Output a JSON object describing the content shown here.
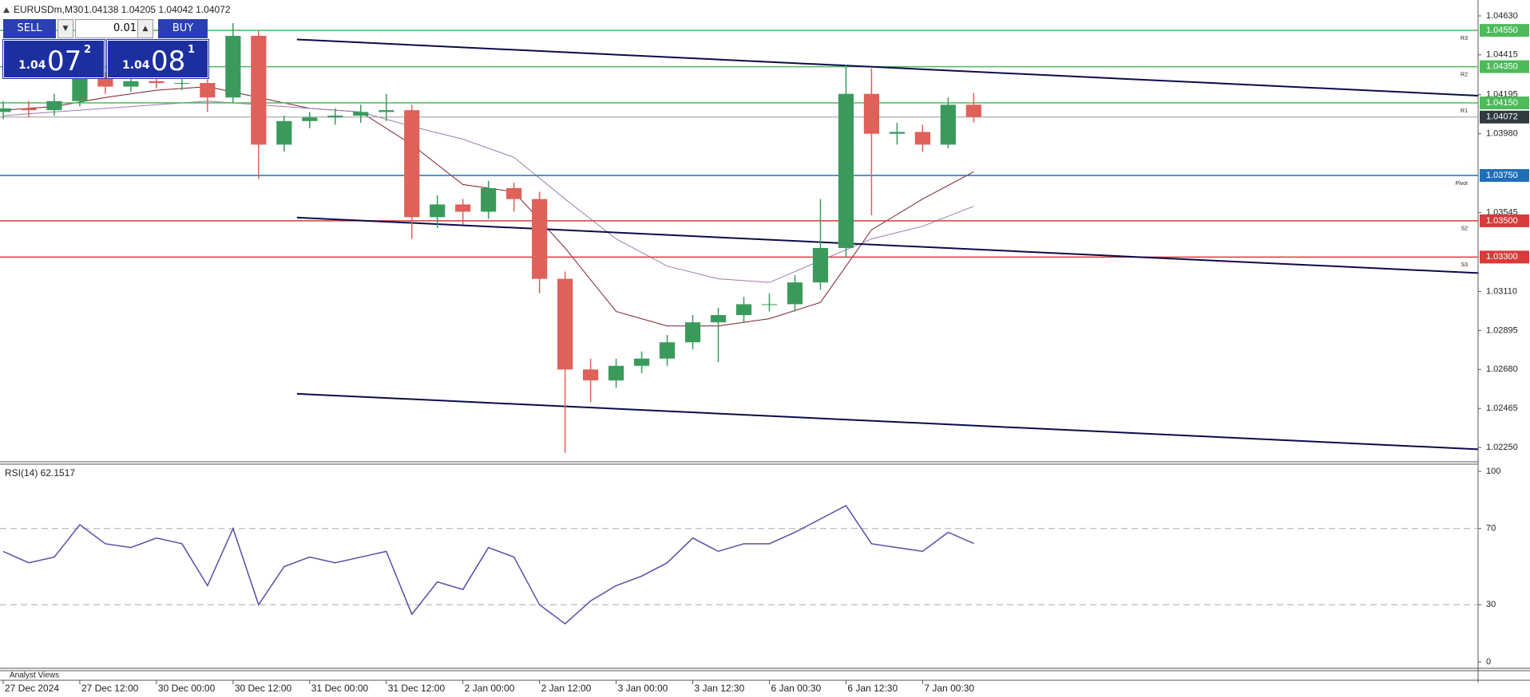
{
  "header": {
    "symbol": "EURUSDm,M30",
    "ohlc": "1.04138 1.04205 1.04042 1.04072"
  },
  "trade_panel": {
    "sell": "SELL",
    "buy": "BUY",
    "lot": "0.01",
    "sell_price": {
      "big": "1.04",
      "pips": "07",
      "point": "2"
    },
    "buy_price": {
      "big": "1.04",
      "pips": "08",
      "point": "1"
    }
  },
  "footer": {
    "tab": "Analyst Views"
  },
  "chart_data": [
    {
      "type": "candlestick",
      "x": [
        0,
        8,
        16,
        24,
        32,
        40,
        48,
        56,
        64,
        72,
        80,
        88,
        96,
        104,
        112,
        120,
        128,
        136,
        144,
        152,
        160,
        168,
        176,
        184,
        192,
        200,
        208,
        216,
        224,
        232,
        240,
        248,
        256,
        264,
        272,
        280,
        288,
        296,
        304
      ],
      "open": [
        1.041,
        1.0412,
        1.0411,
        1.0416,
        1.0429,
        1.0424,
        1.0427,
        1.0426,
        1.0426,
        1.0418,
        1.0452,
        1.0392,
        1.0405,
        1.0407,
        1.0408,
        1.041,
        1.0411,
        1.0352,
        1.0359,
        1.0355,
        1.0368,
        1.0362,
        1.0318,
        1.0268,
        1.0262,
        1.027,
        1.0274,
        1.0283,
        1.0294,
        1.0298,
        1.0304,
        1.0304,
        1.0316,
        1.0335,
        1.042,
        1.0398,
        1.0399,
        1.0392,
        1.0414
      ],
      "high": [
        1.0416,
        1.0416,
        1.042,
        1.0433,
        1.0432,
        1.0431,
        1.043,
        1.0429,
        1.0428,
        1.0459,
        1.0455,
        1.0408,
        1.041,
        1.0412,
        1.0414,
        1.042,
        1.0414,
        1.0364,
        1.0362,
        1.0372,
        1.0371,
        1.0366,
        1.0322,
        1.0274,
        1.0274,
        1.0278,
        1.0287,
        1.0298,
        1.0302,
        1.0308,
        1.031,
        1.032,
        1.0362,
        1.0436,
        1.0434,
        1.0404,
        1.0403,
        1.0418,
        1.04205
      ],
      "low": [
        1.0406,
        1.0407,
        1.0408,
        1.0413,
        1.042,
        1.0421,
        1.0423,
        1.0422,
        1.041,
        1.0415,
        1.0373,
        1.0388,
        1.0401,
        1.0403,
        1.0404,
        1.0405,
        1.034,
        1.0346,
        1.0348,
        1.0351,
        1.0355,
        1.031,
        1.0222,
        1.025,
        1.0258,
        1.0266,
        1.027,
        1.0279,
        1.0272,
        1.0294,
        1.03,
        1.03,
        1.0312,
        1.033,
        1.0353,
        1.0392,
        1.0388,
        1.039,
        1.04042
      ],
      "close": [
        1.0412,
        1.0411,
        1.0416,
        1.0429,
        1.0424,
        1.0427,
        1.0426,
        1.0426,
        1.0418,
        1.0452,
        1.0392,
        1.0405,
        1.0407,
        1.0408,
        1.041,
        1.0411,
        1.0352,
        1.0359,
        1.0355,
        1.0368,
        1.0362,
        1.0318,
        1.0268,
        1.0262,
        1.027,
        1.0274,
        1.0283,
        1.0294,
        1.0298,
        1.0304,
        1.0304,
        1.0316,
        1.0335,
        1.042,
        1.0398,
        1.0399,
        1.0392,
        1.0414,
        1.04072
      ],
      "up_color": "#3a9a5c",
      "down_color": "#e0605a",
      "xlim": [
        -1,
        462
      ],
      "xticks": [
        {
          "value": 0,
          "label": "27 Dec 2024"
        },
        {
          "value": 24,
          "label": "27 Dec 12:00"
        },
        {
          "value": 48,
          "label": "30 Dec 00:00"
        },
        {
          "value": 72,
          "label": "30 Dec 12:00"
        },
        {
          "value": 96,
          "label": "31 Dec 00:00"
        },
        {
          "value": 120,
          "label": "31 Dec 12:00"
        },
        {
          "value": 144,
          "label": "2 Jan 00:00"
        },
        {
          "value": 168,
          "label": "2 Jan 12:00"
        },
        {
          "value": 192,
          "label": "3 Jan 00:00"
        },
        {
          "value": 216,
          "label": "3 Jan 12:30"
        },
        {
          "value": 240,
          "label": "6 Jan 00:30"
        },
        {
          "value": 264,
          "label": "6 Jan 12:30"
        },
        {
          "value": 288,
          "label": "7 Jan 00:30"
        }
      ],
      "ylim": [
        1.0218,
        1.047
      ],
      "yticks": [
        {
          "value": 1.0463,
          "label": "1.04630"
        },
        {
          "value": 1.04415,
          "label": "1.04415"
        },
        {
          "value": 1.04195,
          "label": "1.04195"
        },
        {
          "value": 1.0398,
          "label": "1.03980"
        },
        {
          "value": 1.03545,
          "label": "1.03545"
        },
        {
          "value": 1.0311,
          "label": "1.03110"
        },
        {
          "value": 1.02895,
          "label": "1.02895"
        },
        {
          "value": 1.0268,
          "label": "1.02680"
        },
        {
          "value": 1.02465,
          "label": "1.02465"
        },
        {
          "value": 1.0225,
          "label": "1.02250"
        }
      ],
      "levels": [
        {
          "name": "R3",
          "value": 1.0455,
          "label": "1.04550",
          "color": "#4cbb5a"
        },
        {
          "name": "R2",
          "value": 1.0435,
          "label": "1.04350",
          "color": "#4cbb5a"
        },
        {
          "name": "R1",
          "value": 1.0415,
          "label": "1.04150",
          "color": "#4cbb5a"
        },
        {
          "name": "Pivot",
          "value": 1.0375,
          "label": "1.03750",
          "color": "#1f6fb8"
        },
        {
          "name": "S2",
          "value": 1.035,
          "label": "1.03500",
          "color": "#d93a3a"
        },
        {
          "name": "S3",
          "value": 1.033,
          "label": "1.03300",
          "color": "#d93a3a"
        }
      ],
      "current_price": {
        "value": 1.04072,
        "label": "1.04072",
        "color": "#2e3b40"
      },
      "trend_line_color": "#0b0b4a",
      "trend_lines": [
        {
          "x": [
            92,
            462
          ],
          "y": [
            1.045,
            1.0419
          ]
        },
        {
          "x": [
            92,
            462
          ],
          "y": [
            1.03518,
            1.03212
          ]
        },
        {
          "x": [
            92,
            462
          ],
          "y": [
            1.02546,
            1.0224
          ]
        }
      ],
      "moving_averages": {
        "x": [
          0,
          16,
          32,
          48,
          64,
          80,
          96,
          112,
          128,
          144,
          160,
          176,
          192,
          208,
          224,
          240,
          256,
          272,
          288,
          304
        ],
        "series": [
          {
            "color": "#7a1f2a",
            "values": [
              1.0411,
              1.0413,
              1.0418,
              1.0422,
              1.0424,
              1.0418,
              1.0412,
              1.041,
              1.0392,
              1.037,
              1.0366,
              1.0335,
              1.03,
              1.0292,
              1.0292,
              1.0296,
              1.0305,
              1.0345,
              1.0362,
              1.0377
            ]
          },
          {
            "color": "#9b7bb0",
            "values": [
              1.0408,
              1.041,
              1.0412,
              1.0414,
              1.0416,
              1.0414,
              1.0412,
              1.041,
              1.0402,
              1.0395,
              1.0385,
              1.0362,
              1.034,
              1.0325,
              1.0318,
              1.0316,
              1.0328,
              1.034,
              1.0347,
              1.0358
            ]
          }
        ]
      }
    },
    {
      "type": "line",
      "title": "RSI(14) 62.1517",
      "x": [
        0,
        8,
        16,
        24,
        32,
        40,
        48,
        56,
        64,
        72,
        80,
        88,
        96,
        104,
        112,
        120,
        128,
        136,
        144,
        152,
        160,
        168,
        176,
        184,
        192,
        200,
        208,
        216,
        224,
        232,
        240,
        248,
        256,
        264,
        272,
        280,
        288,
        296,
        304
      ],
      "series": [
        {
          "color": "#5b4ca8",
          "values": [
            58,
            52,
            55,
            72,
            62,
            60,
            65,
            62,
            40,
            70,
            30,
            50,
            55,
            52,
            55,
            58,
            25,
            42,
            38,
            60,
            55,
            30,
            20,
            32,
            40,
            45,
            52,
            65,
            58,
            62,
            62,
            68,
            75,
            82,
            62,
            60,
            58,
            68,
            62.1517
          ]
        }
      ],
      "xlim": [
        -1,
        462
      ],
      "ylim": [
        0,
        100
      ],
      "yticks": [
        0,
        30,
        70,
        100
      ],
      "levels": [
        30,
        70
      ]
    }
  ]
}
